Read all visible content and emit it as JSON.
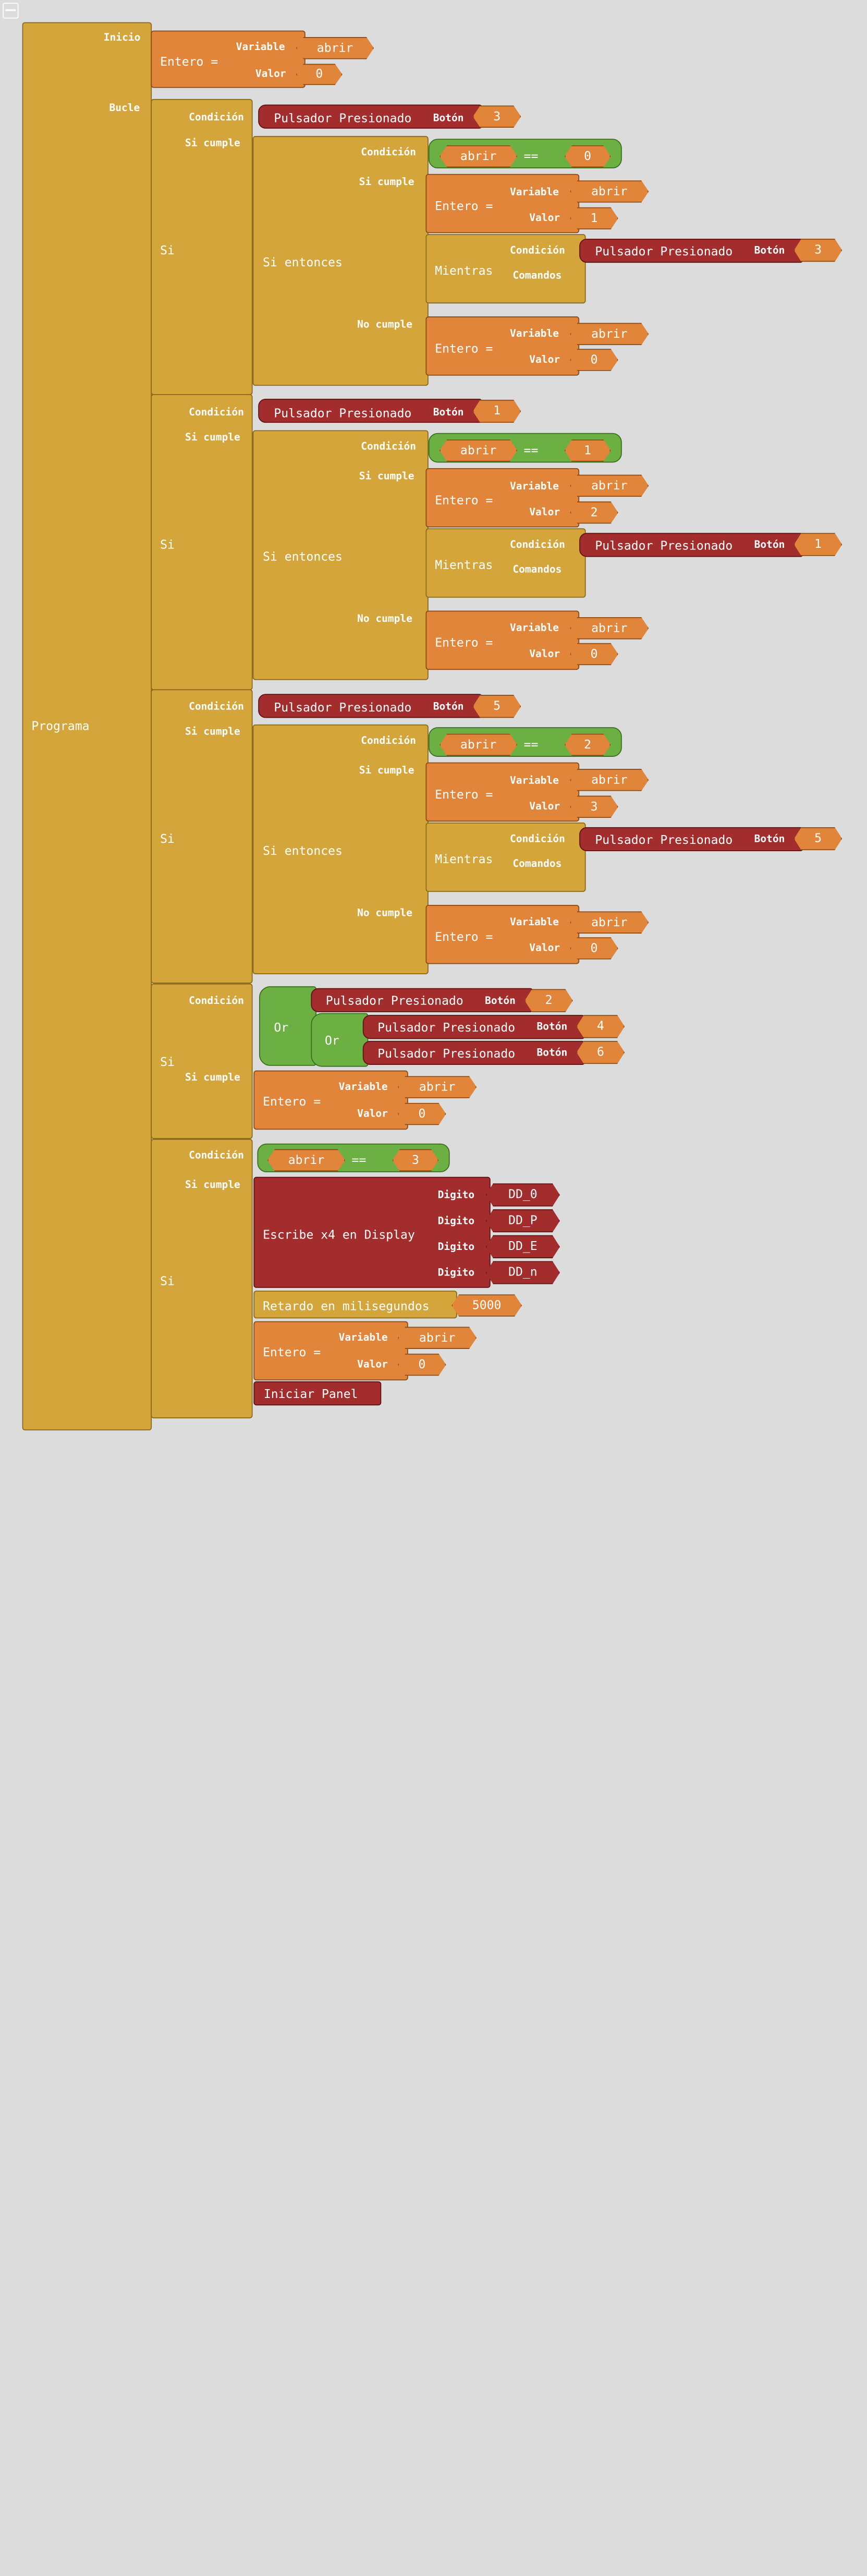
{
  "labels": {
    "programa": "Programa",
    "inicio": "Inicio",
    "bucle": "Bucle",
    "si": "Si",
    "condicion": "Condición",
    "si_cumple": "Si cumple",
    "no_cumple": "No cumple",
    "si_entonces": "Si entonces",
    "entero": "Entero =",
    "variable": "Variable",
    "valor": "Valor",
    "mientras": "Mientras",
    "comandos": "Comandos",
    "pulsador": "Pulsador Presionado",
    "boton": "Botón",
    "eq": "==",
    "or": "Or",
    "display": "Escribe x4 en Display",
    "digito": "Digito",
    "retardo": "Retardo en milisegundos",
    "iniciar_panel": "Iniciar Panel"
  },
  "values": {
    "var": "abrir",
    "v0": "0",
    "v1": "1",
    "v2": "2",
    "v3": "3",
    "v4": "4",
    "v5": "5",
    "v6": "6",
    "delay": "5000",
    "d0": "DD_0",
    "d1": "DD_P",
    "d2": "DD_E",
    "d3": "DD_n"
  },
  "colors": {
    "background": "#dcdcdc",
    "program": "#d4a53a",
    "integer": "#e0853a",
    "button": "#a32c2c",
    "compare": "#6cb043"
  }
}
